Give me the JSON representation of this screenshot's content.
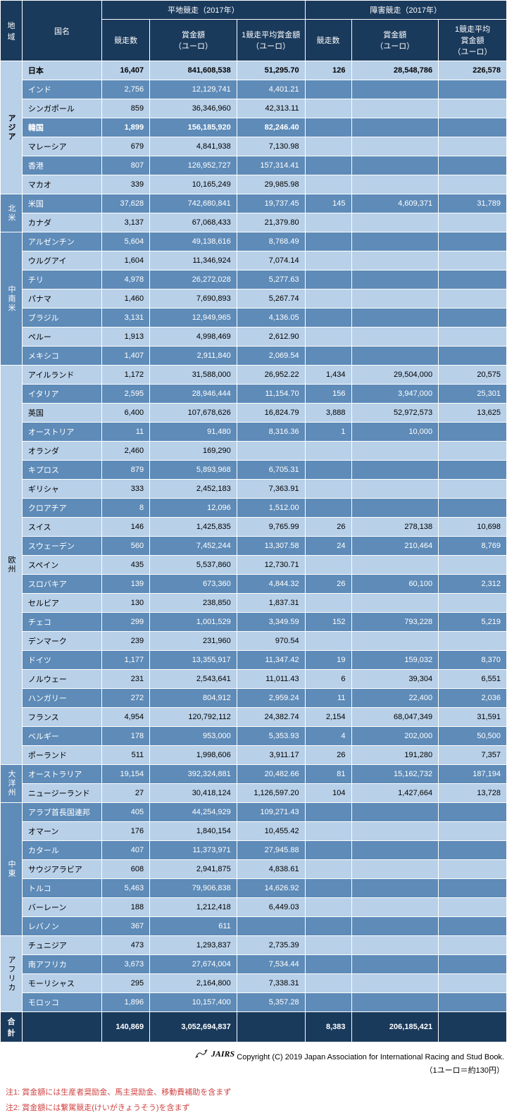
{
  "header": {
    "region": "地域",
    "country": "国名",
    "flat_group": "平地競走（2017年）",
    "jump_group": "障害競走（2017年）",
    "races": "競走数",
    "prize": "賞金額\n（ユーロ）",
    "avg": "1競走平均賞金額\n（ユーロ）",
    "jump_avg": "1競走平均\n賞金額\n（ユーロ）"
  },
  "regions": [
    {
      "name": "アジア",
      "rows": [
        {
          "c": "日本",
          "bold": true,
          "f": [
            "16,407",
            "841,608,538",
            "51,295.70"
          ],
          "j": [
            "126",
            "28,548,786",
            "226,578"
          ]
        },
        {
          "c": "インド",
          "f": [
            "2,756",
            "12,129,741",
            "4,401.21"
          ],
          "j": [
            "",
            "",
            ""
          ]
        },
        {
          "c": "シンガポール",
          "f": [
            "859",
            "36,346,960",
            "42,313.11"
          ],
          "j": [
            "",
            "",
            ""
          ]
        },
        {
          "c": "韓国",
          "bold": true,
          "f": [
            "1,899",
            "156,185,920",
            "82,246.40"
          ],
          "j": [
            "",
            "",
            ""
          ]
        },
        {
          "c": "マレーシア",
          "f": [
            "679",
            "4,841,938",
            "7,130.98"
          ],
          "j": [
            "",
            "",
            ""
          ]
        },
        {
          "c": "香港",
          "f": [
            "807",
            "126,952,727",
            "157,314.41"
          ],
          "j": [
            "",
            "",
            ""
          ]
        },
        {
          "c": "マカオ",
          "f": [
            "339",
            "10,165,249",
            "29,985.98"
          ],
          "j": [
            "",
            "",
            ""
          ]
        }
      ]
    },
    {
      "name": "北米",
      "rows": [
        {
          "c": "米国",
          "f": [
            "37,628",
            "742,680,841",
            "19,737.45"
          ],
          "j": [
            "145",
            "4,609,371",
            "31,789"
          ]
        },
        {
          "c": "カナダ",
          "f": [
            "3,137",
            "67,068,433",
            "21,379.80"
          ],
          "j": [
            "",
            "",
            ""
          ]
        }
      ]
    },
    {
      "name": "中南米",
      "rows": [
        {
          "c": "アルゼンチン",
          "f": [
            "5,604",
            "49,138,616",
            "8,768.49"
          ],
          "j": [
            "",
            "",
            ""
          ]
        },
        {
          "c": "ウルグアイ",
          "f": [
            "1,604",
            "11,346,924",
            "7,074.14"
          ],
          "j": [
            "",
            "",
            ""
          ]
        },
        {
          "c": "チリ",
          "f": [
            "4,978",
            "26,272,028",
            "5,277.63"
          ],
          "j": [
            "",
            "",
            ""
          ]
        },
        {
          "c": "パナマ",
          "f": [
            "1,460",
            "7,690,893",
            "5,267.74"
          ],
          "j": [
            "",
            "",
            ""
          ]
        },
        {
          "c": "ブラジル",
          "f": [
            "3,131",
            "12,949,965",
            "4,136.05"
          ],
          "j": [
            "",
            "",
            ""
          ]
        },
        {
          "c": "ペルー",
          "f": [
            "1,913",
            "4,998,469",
            "2,612.90"
          ],
          "j": [
            "",
            "",
            ""
          ]
        },
        {
          "c": "メキシコ",
          "f": [
            "1,407",
            "2,911,840",
            "2,069.54"
          ],
          "j": [
            "",
            "",
            ""
          ]
        }
      ]
    },
    {
      "name": "欧州",
      "rows": [
        {
          "c": "アイルランド",
          "f": [
            "1,172",
            "31,588,000",
            "26,952.22"
          ],
          "j": [
            "1,434",
            "29,504,000",
            "20,575"
          ]
        },
        {
          "c": "イタリア",
          "f": [
            "2,595",
            "28,946,444",
            "11,154.70"
          ],
          "j": [
            "156",
            "3,947,000",
            "25,301"
          ]
        },
        {
          "c": "英国",
          "f": [
            "6,400",
            "107,678,626",
            "16,824.79"
          ],
          "j": [
            "3,888",
            "52,972,573",
            "13,625"
          ]
        },
        {
          "c": "オーストリア",
          "f": [
            "11",
            "91,480",
            "8,316.36"
          ],
          "j": [
            "1",
            "10,000",
            ""
          ]
        },
        {
          "c": "オランダ",
          "f": [
            "2,460",
            "169,290",
            ""
          ],
          "j": [
            "",
            "",
            ""
          ]
        },
        {
          "c": "キプロス",
          "f": [
            "879",
            "5,893,968",
            "6,705.31"
          ],
          "j": [
            "",
            "",
            ""
          ]
        },
        {
          "c": "ギリシャ",
          "f": [
            "333",
            "2,452,183",
            "7,363.91"
          ],
          "j": [
            "",
            "",
            ""
          ]
        },
        {
          "c": "クロアチア",
          "f": [
            "8",
            "12,096",
            "1,512.00"
          ],
          "j": [
            "",
            "",
            ""
          ]
        },
        {
          "c": "スイス",
          "f": [
            "146",
            "1,425,835",
            "9,765.99"
          ],
          "j": [
            "26",
            "278,138",
            "10,698"
          ]
        },
        {
          "c": "スウェーデン",
          "f": [
            "560",
            "7,452,244",
            "13,307.58"
          ],
          "j": [
            "24",
            "210,464",
            "8,769"
          ]
        },
        {
          "c": "スペイン",
          "f": [
            "435",
            "5,537,860",
            "12,730.71"
          ],
          "j": [
            "",
            "",
            ""
          ]
        },
        {
          "c": "スロバキア",
          "f": [
            "139",
            "673,360",
            "4,844.32"
          ],
          "j": [
            "26",
            "60,100",
            "2,312"
          ]
        },
        {
          "c": "セルビア",
          "f": [
            "130",
            "238,850",
            "1,837.31"
          ],
          "j": [
            "",
            "",
            ""
          ]
        },
        {
          "c": "チェコ",
          "f": [
            "299",
            "1,001,529",
            "3,349.59"
          ],
          "j": [
            "152",
            "793,228",
            "5,219"
          ]
        },
        {
          "c": "デンマーク",
          "f": [
            "239",
            "231,960",
            "970.54"
          ],
          "j": [
            "",
            "",
            ""
          ]
        },
        {
          "c": "ドイツ",
          "f": [
            "1,177",
            "13,355,917",
            "11,347.42"
          ],
          "j": [
            "19",
            "159,032",
            "8,370"
          ]
        },
        {
          "c": "ノルウェー",
          "f": [
            "231",
            "2,543,641",
            "11,011.43"
          ],
          "j": [
            "6",
            "39,304",
            "6,551"
          ]
        },
        {
          "c": "ハンガリー",
          "f": [
            "272",
            "804,912",
            "2,959.24"
          ],
          "j": [
            "11",
            "22,400",
            "2,036"
          ]
        },
        {
          "c": "フランス",
          "f": [
            "4,954",
            "120,792,112",
            "24,382.74"
          ],
          "j": [
            "2,154",
            "68,047,349",
            "31,591"
          ]
        },
        {
          "c": "ベルギー",
          "f": [
            "178",
            "953,000",
            "5,353.93"
          ],
          "j": [
            "4",
            "202,000",
            "50,500"
          ]
        },
        {
          "c": "ポーランド",
          "f": [
            "511",
            "1,998,606",
            "3,911.17"
          ],
          "j": [
            "26",
            "191,280",
            "7,357"
          ]
        }
      ]
    },
    {
      "name": "大洋州",
      "rows": [
        {
          "c": "オーストラリア",
          "f": [
            "19,154",
            "392,324,881",
            "20,482.66"
          ],
          "j": [
            "81",
            "15,162,732",
            "187,194"
          ]
        },
        {
          "c": "ニュージーランド",
          "f": [
            "27",
            "30,418,124",
            "1,126,597.20"
          ],
          "j": [
            "104",
            "1,427,664",
            "13,728"
          ]
        }
      ]
    },
    {
      "name": "中東",
      "rows": [
        {
          "c": "アラブ首長国連邦",
          "f": [
            "405",
            "44,254,929",
            "109,271.43"
          ],
          "j": [
            "",
            "",
            ""
          ]
        },
        {
          "c": "オマーン",
          "f": [
            "176",
            "1,840,154",
            "10,455.42"
          ],
          "j": [
            "",
            "",
            ""
          ]
        },
        {
          "c": "カタール",
          "f": [
            "407",
            "11,373,971",
            "27,945.88"
          ],
          "j": [
            "",
            "",
            ""
          ]
        },
        {
          "c": "サウジアラビア",
          "f": [
            "608",
            "2,941,875",
            "4,838.61"
          ],
          "j": [
            "",
            "",
            ""
          ]
        },
        {
          "c": "トルコ",
          "f": [
            "5,463",
            "79,906,838",
            "14,626.92"
          ],
          "j": [
            "",
            "",
            ""
          ]
        },
        {
          "c": "バーレーン",
          "f": [
            "188",
            "1,212,418",
            "6,449.03"
          ],
          "j": [
            "",
            "",
            ""
          ]
        },
        {
          "c": "レバノン",
          "f": [
            "367",
            "611",
            ""
          ],
          "j": [
            "",
            "",
            ""
          ]
        }
      ]
    },
    {
      "name": "アフリカ",
      "rows": [
        {
          "c": "チュニジア",
          "f": [
            "473",
            "1,293,837",
            "2,735.39"
          ],
          "j": [
            "",
            "",
            ""
          ]
        },
        {
          "c": "南アフリカ",
          "f": [
            "3,673",
            "27,674,004",
            "7,534.44"
          ],
          "j": [
            "",
            "",
            ""
          ]
        },
        {
          "c": "モーリシャス",
          "f": [
            "295",
            "2,164,800",
            "7,338.31"
          ],
          "j": [
            "",
            "",
            ""
          ]
        },
        {
          "c": "モロッコ",
          "f": [
            "1,896",
            "10,157,400",
            "5,357.28"
          ],
          "j": [
            "",
            "",
            ""
          ]
        }
      ]
    }
  ],
  "total": {
    "label": "合計",
    "f": [
      "140,869",
      "3,052,694,837",
      ""
    ],
    "j": [
      "8,383",
      "206,185,421",
      ""
    ]
  },
  "copyright": "Copyright (C) 2019 Japan Association for International Racing and Stud Book.",
  "logo_text": "JAIRS",
  "rate": "（1ユーロ＝約130円）",
  "note1": "注1: 賞金額には生産者奨励金、馬主奨励金、移動費補助を含まず",
  "note2": "注2: 賞金額には繋駕競走(けいがきょうそう)を含まず"
}
